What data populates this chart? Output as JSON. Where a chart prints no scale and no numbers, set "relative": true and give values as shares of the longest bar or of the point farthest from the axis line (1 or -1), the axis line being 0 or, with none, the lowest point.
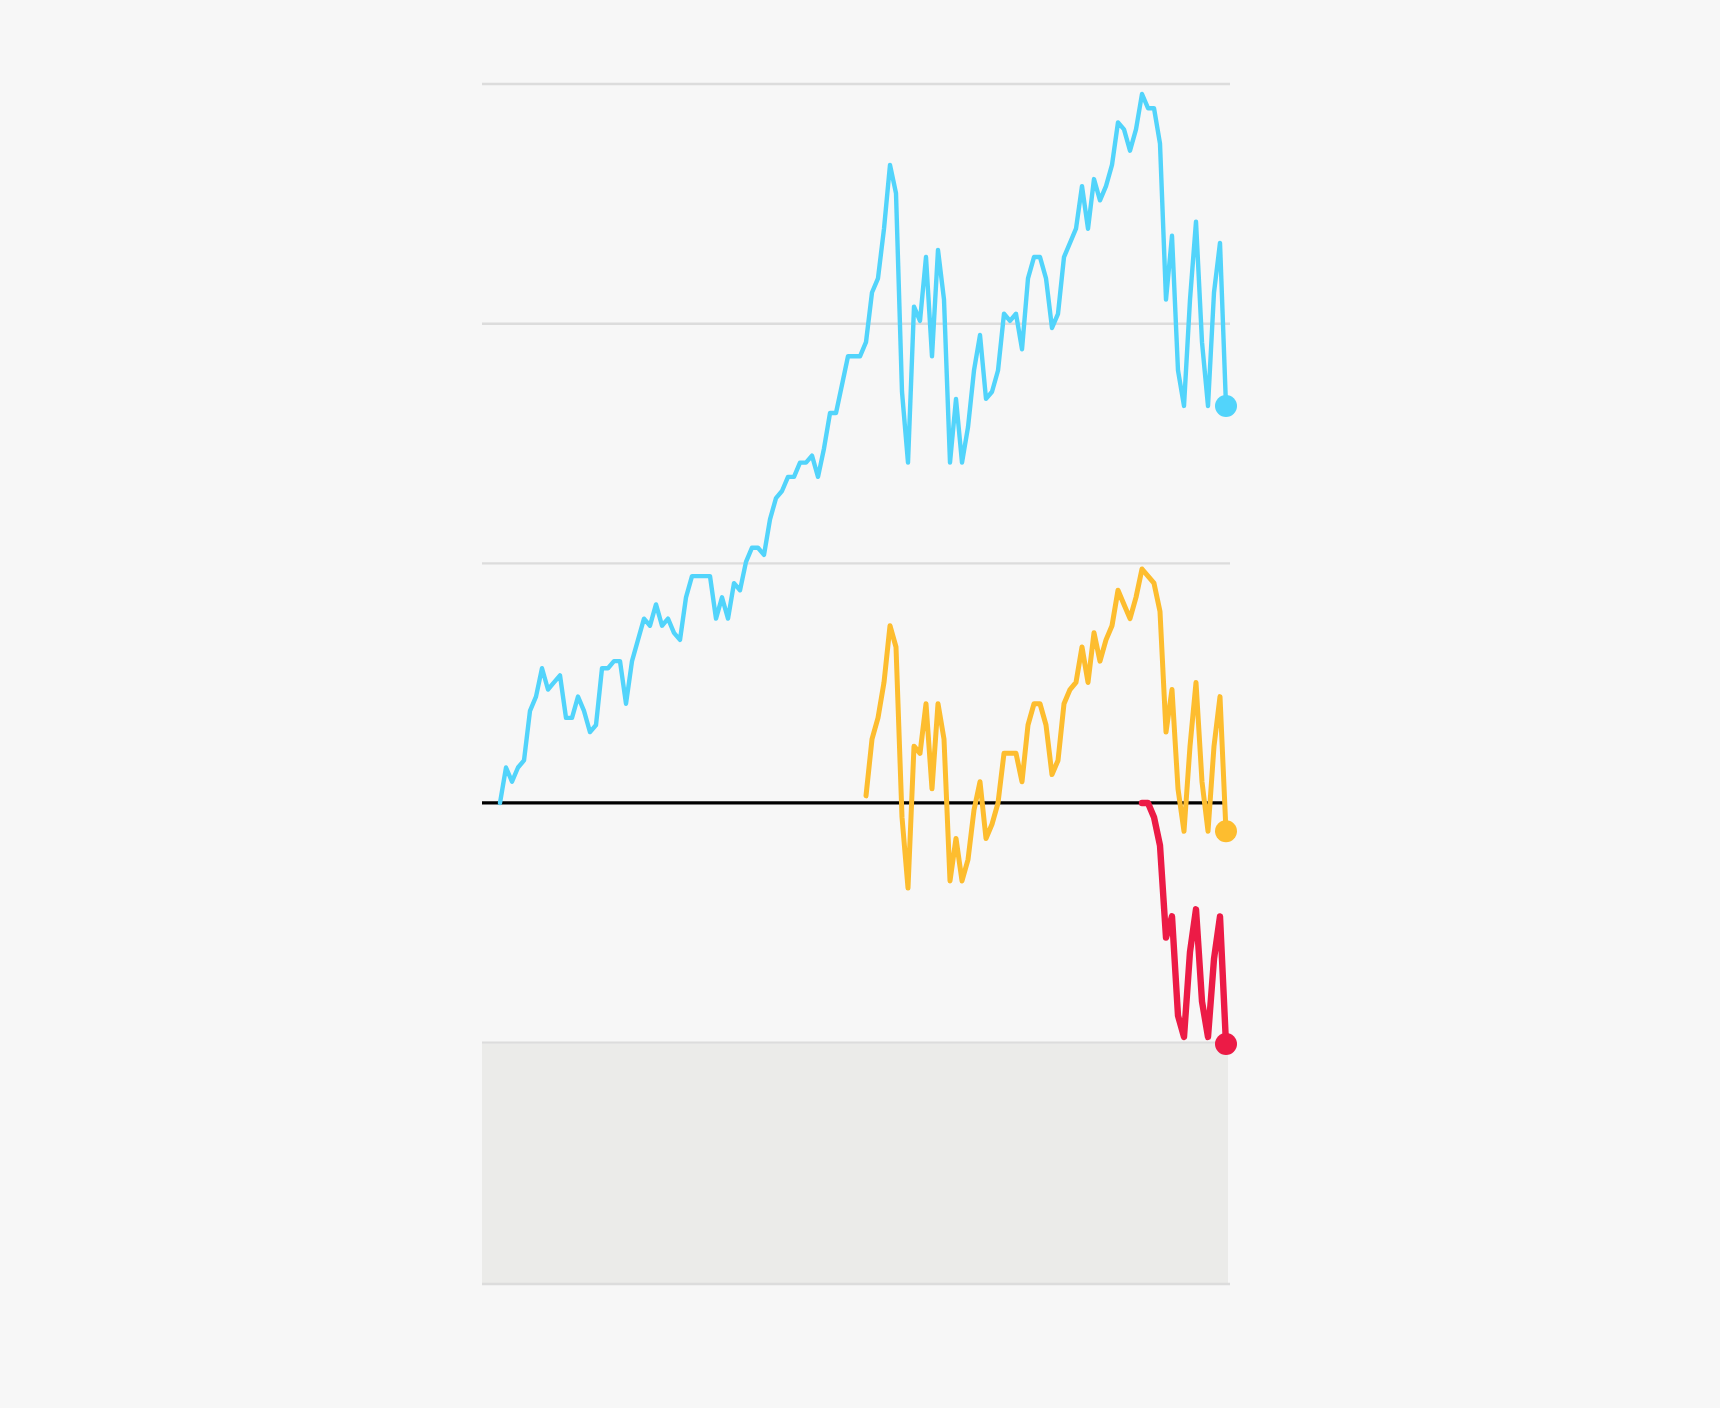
{
  "chart_data": {
    "type": "line",
    "relative": true,
    "categories": [
      null,
      null,
      null,
      null,
      null,
      null,
      null,
      null,
      null,
      null,
      null,
      null,
      null,
      null,
      null,
      null,
      null,
      null,
      null,
      null,
      null,
      null,
      null,
      null,
      null,
      null,
      null,
      null,
      null,
      null,
      null,
      null,
      null,
      null,
      null,
      null,
      null,
      null,
      null,
      null,
      null,
      null,
      null,
      null,
      null,
      null,
      null,
      null,
      null,
      null,
      null,
      null,
      null,
      null,
      null,
      null,
      null,
      null,
      null,
      null,
      null,
      null,
      null,
      null,
      null,
      null,
      null,
      null,
      null,
      null,
      null,
      null,
      null,
      null,
      null,
      null,
      null,
      null,
      null,
      null,
      null,
      null,
      null,
      null,
      null,
      null,
      null,
      null,
      null,
      null,
      null,
      null,
      null,
      null,
      null,
      null,
      null,
      null,
      null,
      null,
      null,
      null,
      null,
      null,
      null,
      null,
      null,
      null,
      null,
      null,
      null,
      null,
      null,
      null,
      null,
      null,
      null,
      null,
      null,
      null,
      null,
      null,
      null,
      null,
      null
    ],
    "series": [
      {
        "color": "#52d4fb",
        "values": [
          null,
          null,
          null,
          0,
          0.05,
          0.03,
          0.05,
          0.06,
          0.13,
          0.15,
          0.19,
          0.16,
          0.17,
          0.18,
          0.12,
          0.12,
          0.15,
          0.13,
          0.1,
          0.11,
          0.19,
          0.19,
          0.2,
          0.2,
          0.14,
          0.2,
          0.23,
          0.26,
          0.25,
          0.28,
          0.25,
          0.26,
          0.24,
          0.23,
          0.29,
          0.32,
          0.32,
          0.32,
          0.32,
          0.26,
          0.29,
          0.26,
          0.31,
          0.3,
          0.34,
          0.36,
          0.36,
          0.35,
          0.4,
          0.43,
          0.44,
          0.46,
          0.46,
          0.48,
          0.48,
          0.49,
          0.46,
          0.5,
          0.55,
          0.55,
          0.59,
          0.63,
          0.63,
          0.63,
          0.65,
          0.72,
          0.74,
          0.81,
          0.9,
          0.86,
          0.58,
          0.48,
          0.7,
          0.68,
          0.77,
          0.63,
          0.78,
          0.71,
          0.48,
          0.57,
          0.48,
          0.53,
          0.61,
          0.66,
          0.57,
          0.58,
          0.61,
          0.69,
          0.68,
          0.69,
          0.64,
          0.74,
          0.77,
          0.77,
          0.74,
          0.67,
          0.69,
          0.77,
          0.79,
          0.81,
          0.87,
          0.81,
          0.88,
          0.85,
          0.87,
          0.9,
          0.96,
          0.95,
          0.92,
          0.95,
          1,
          0.98,
          0.98,
          0.93,
          0.71,
          0.8,
          0.61,
          0.56,
          0.71,
          0.82,
          0.65,
          0.56,
          0.72,
          0.79,
          0.56
        ]
      },
      {
        "color": "#fdbd2f",
        "values": [
          null,
          null,
          null,
          null,
          null,
          null,
          null,
          null,
          null,
          null,
          null,
          null,
          null,
          null,
          null,
          null,
          null,
          null,
          null,
          null,
          null,
          null,
          null,
          null,
          null,
          null,
          null,
          null,
          null,
          null,
          null,
          null,
          null,
          null,
          null,
          null,
          null,
          null,
          null,
          null,
          null,
          null,
          null,
          null,
          null,
          null,
          null,
          null,
          null,
          null,
          null,
          null,
          null,
          null,
          null,
          null,
          null,
          null,
          null,
          null,
          null,
          null,
          null,
          null,
          0.01,
          0.09,
          0.12,
          0.17,
          0.25,
          0.22,
          -0.02,
          -0.12,
          0.08,
          0.07,
          0.14,
          0.02,
          0.14,
          0.09,
          -0.11,
          -0.05,
          -0.11,
          -0.08,
          -0.01,
          0.03,
          -0.05,
          -0.03,
          0,
          0.07,
          0.07,
          0.07,
          0.03,
          0.11,
          0.14,
          0.14,
          0.11,
          0.04,
          0.06,
          0.14,
          0.16,
          0.17,
          0.22,
          0.17,
          0.24,
          0.2,
          0.23,
          0.25,
          0.3,
          0.28,
          0.26,
          0.29,
          0.33,
          0.32,
          0.31,
          0.27,
          0.1,
          0.16,
          0.02,
          -0.04,
          0.08,
          0.17,
          0.03,
          -0.04,
          0.08,
          0.15,
          -0.04
        ]
      },
      {
        "color": "#ec1b46",
        "values": [
          null,
          null,
          null,
          null,
          null,
          null,
          null,
          null,
          null,
          null,
          null,
          null,
          null,
          null,
          null,
          null,
          null,
          null,
          null,
          null,
          null,
          null,
          null,
          null,
          null,
          null,
          null,
          null,
          null,
          null,
          null,
          null,
          null,
          null,
          null,
          null,
          null,
          null,
          null,
          null,
          null,
          null,
          null,
          null,
          null,
          null,
          null,
          null,
          null,
          null,
          null,
          null,
          null,
          null,
          null,
          null,
          null,
          null,
          null,
          null,
          null,
          null,
          null,
          null,
          null,
          null,
          null,
          null,
          null,
          null,
          null,
          null,
          null,
          null,
          null,
          null,
          null,
          null,
          null,
          null,
          null,
          null,
          null,
          null,
          null,
          null,
          null,
          null,
          null,
          null,
          null,
          null,
          null,
          null,
          null,
          null,
          null,
          null,
          null,
          null,
          null,
          null,
          null,
          null,
          null,
          null,
          null,
          null,
          null,
          null,
          0,
          0,
          -0.02,
          -0.06,
          -0.19,
          -0.16,
          -0.3,
          -0.33,
          -0.21,
          -0.15,
          -0.28,
          -0.33,
          -0.22,
          -0.16,
          -0.34
        ]
      }
    ],
    "ref_lines": [
      {
        "axis": "y",
        "value": 0.676,
        "color": "#dcdcdc"
      },
      {
        "axis": "y",
        "value": 0.338,
        "color": "#dcdcdc"
      },
      {
        "axis": "y",
        "value": -0.338,
        "color": "#dcdcdc"
      }
    ]
  }
}
